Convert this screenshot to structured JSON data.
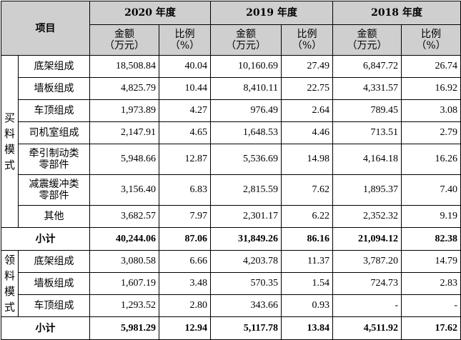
{
  "header": {
    "item": "项目",
    "years": [
      "2020 年度",
      "2019 年度",
      "2018 年度"
    ],
    "amount": "金额",
    "amount_unit": "（万元）",
    "ratio": "比例",
    "ratio_unit": "（%）"
  },
  "groups": [
    {
      "label": [
        "买",
        "料",
        "模",
        "式"
      ],
      "rows": [
        {
          "item": [
            "底架组成"
          ],
          "v": [
            "18,508.84",
            "40.04",
            "10,160.69",
            "27.49",
            "6,847.72",
            "26.74"
          ]
        },
        {
          "item": [
            "墙板组成"
          ],
          "v": [
            "4,825.79",
            "10.44",
            "8,410.11",
            "22.75",
            "4,331.57",
            "16.92"
          ]
        },
        {
          "item": [
            "车顶组成"
          ],
          "v": [
            "1,973.89",
            "4.27",
            "976.49",
            "2.64",
            "789.45",
            "3.08"
          ]
        },
        {
          "item": [
            "司机室组成"
          ],
          "v": [
            "2,147.91",
            "4.65",
            "1,648.53",
            "4.46",
            "713.51",
            "2.79"
          ]
        },
        {
          "item": [
            "牵引制动类",
            "零部件"
          ],
          "v": [
            "5,948.66",
            "12.87",
            "5,536.69",
            "14.98",
            "4,164.18",
            "16.26"
          ]
        },
        {
          "item": [
            "减震缓冲类",
            "零部件"
          ],
          "v": [
            "3,156.40",
            "6.83",
            "2,815.59",
            "7.62",
            "1,895.37",
            "7.40"
          ]
        },
        {
          "item": [
            "其他"
          ],
          "v": [
            "3,682.57",
            "7.97",
            "2,301.17",
            "6.22",
            "2,352.32",
            "9.19"
          ]
        }
      ],
      "subtotal": {
        "label": "小计",
        "v": [
          "40,244.06",
          "87.06",
          "31,849.26",
          "86.16",
          "21,094.12",
          "82.38"
        ]
      }
    },
    {
      "label": [
        "领",
        "料",
        "模",
        "式"
      ],
      "rows": [
        {
          "item": [
            "底架组成"
          ],
          "v": [
            "3,080.58",
            "6.66",
            "4,203.78",
            "11.37",
            "3,787.20",
            "14.79"
          ]
        },
        {
          "item": [
            "墙板组成"
          ],
          "v": [
            "1,607.19",
            "3.48",
            "570.35",
            "1.54",
            "724.73",
            "2.83"
          ]
        },
        {
          "item": [
            "车顶组成"
          ],
          "v": [
            "1,293.52",
            "2.80",
            "343.66",
            "0.93",
            "-",
            "-"
          ]
        }
      ],
      "subtotal": {
        "label": "小计",
        "v": [
          "5,981.29",
          "12.94",
          "5,117.78",
          "13.84",
          "4,511.92",
          "17.62"
        ]
      }
    }
  ]
}
